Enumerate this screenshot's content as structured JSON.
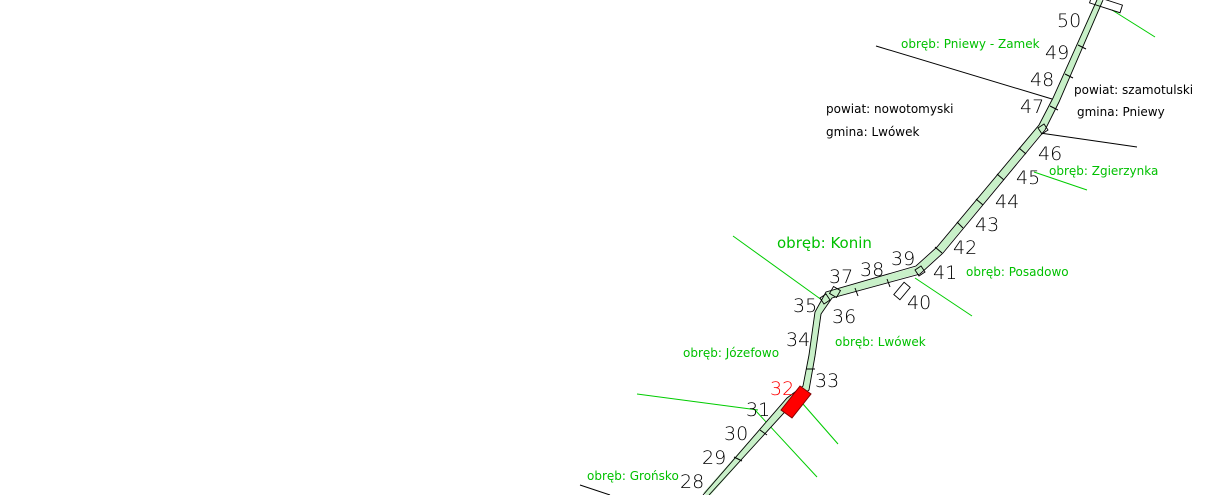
{
  "colors": {
    "background": "#ffffff",
    "boundary_green": "#00cc00",
    "label_green": "#00c000",
    "admin_black": "#000000",
    "highlight_red": "#ff0000"
  },
  "segments": [
    "28",
    "29",
    "30",
    "31",
    "32",
    "33",
    "34",
    "35",
    "36",
    "37",
    "38",
    "39",
    "40",
    "41",
    "42",
    "43",
    "44",
    "45",
    "46",
    "47",
    "48",
    "49",
    "50"
  ],
  "highlighted_segment": "32",
  "precincts": [
    "obręb: Pniewy - Zamek",
    "obręb: Zgierzynka",
    "obręb: Konin",
    "obręb: Posadowo",
    "obręb: Lwówek",
    "obręb: Józefowo",
    "obręb: Grońsko"
  ],
  "admin": {
    "west": {
      "county": "powiat: nowotomyski",
      "commune": "gmina: Lwówek"
    },
    "east": {
      "county": "powiat: szamotulski",
      "commune": "gmina: Pniewy"
    }
  }
}
